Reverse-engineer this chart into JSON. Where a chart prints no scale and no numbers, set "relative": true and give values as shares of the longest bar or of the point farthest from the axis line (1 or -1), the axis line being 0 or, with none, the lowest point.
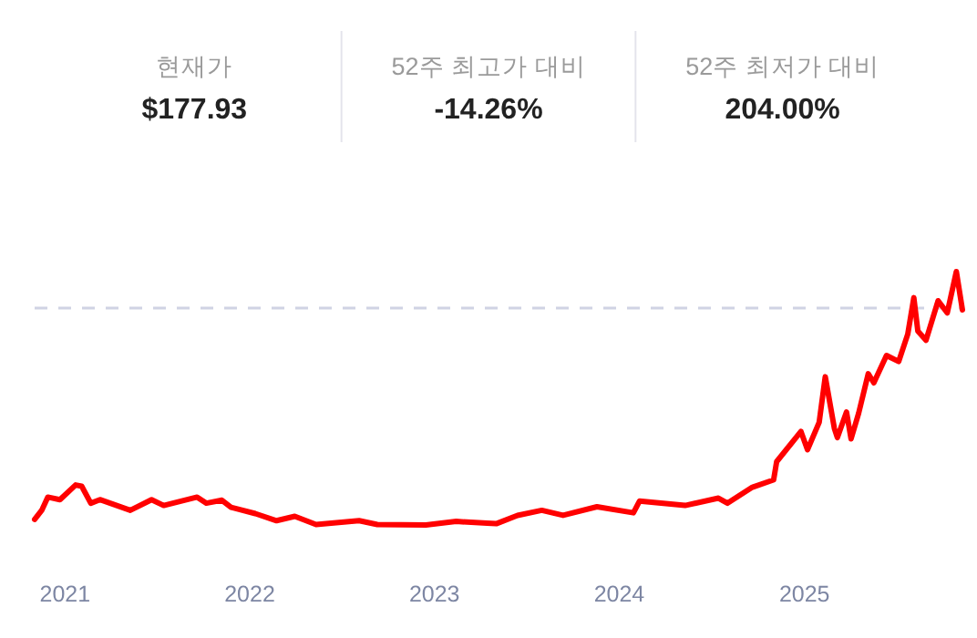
{
  "chart_data": [
    {
      "type": "other",
      "annotations": [
        "현재가",
        "$177.93",
        "52주 최고가 대비",
        "-14.26%",
        "52주 최저가 대비",
        "204.00%"
      ]
    },
    {
      "type": "line",
      "relative": true,
      "xlim": [
        "2020-11-02",
        "2025-11-09"
      ],
      "xticks": [
        {
          "value": "2021-01-01",
          "label": "2021"
        },
        {
          "value": "2022-01-01",
          "label": "2022"
        },
        {
          "value": "2023-01-01",
          "label": "2023"
        },
        {
          "value": "2024-01-01",
          "label": "2024"
        },
        {
          "value": "2025-01-01",
          "label": "2025"
        }
      ],
      "grid": false,
      "ref_lines": [
        {
          "axis": "y",
          "value": 0.856,
          "color": "#d0d3e4",
          "line_style": "dashed"
        }
      ],
      "x": [
        "2020-11-02",
        "2020-11-16",
        "2020-11-28",
        "2020-12-22",
        "2021-01-22",
        "2021-02-03",
        "2021-02-21",
        "2021-03-11",
        "2021-05-10",
        "2021-06-21",
        "2021-07-15",
        "2021-09-19",
        "2021-10-07",
        "2021-11-07",
        "2021-11-25",
        "2022-01-12",
        "2022-02-23",
        "2022-03-31",
        "2022-05-12",
        "2022-08-05",
        "2022-09-10",
        "2022-12-15",
        "2023-02-13",
        "2023-04-15",
        "2023-05-03",
        "2023-06-14",
        "2023-08-01",
        "2023-09-12",
        "2023-11-18",
        "2024-01-29",
        "2024-02-10",
        "2024-05-10",
        "2024-07-15",
        "2024-08-02",
        "2024-09-20",
        "2024-11-01",
        "2024-11-07",
        "2024-12-25",
        "2025-01-07",
        "2025-01-30",
        "2025-02-11",
        "2025-03-01",
        "2025-03-07",
        "2025-03-25",
        "2025-04-03",
        "2025-04-18",
        "2025-05-07",
        "2025-05-18",
        "2025-06-12",
        "2025-07-06",
        "2025-07-24",
        "2025-08-05",
        "2025-08-13",
        "2025-08-29",
        "2025-09-22",
        "2025-10-10",
        "2025-10-28",
        "2025-11-09"
      ],
      "series": [
        {
          "color": "#ff0000",
          "values": [
            0.022,
            0.058,
            0.11,
            0.1,
            0.158,
            0.153,
            0.086,
            0.1,
            0.058,
            0.1,
            0.077,
            0.11,
            0.086,
            0.098,
            0.07,
            0.045,
            0.017,
            0.034,
            0.002,
            0.017,
            0.002,
            0,
            0.014,
            0.007,
            0.005,
            0.038,
            0.058,
            0.038,
            0.072,
            0.048,
            0.094,
            0.077,
            0.106,
            0.086,
            0.149,
            0.178,
            0.25,
            0.369,
            0.297,
            0.405,
            0.585,
            0.381,
            0.345,
            0.446,
            0.34,
            0.441,
            0.597,
            0.561,
            0.669,
            0.645,
            0.753,
            0.897,
            0.765,
            0.729,
            0.885,
            0.837,
            1.0,
            0.849
          ]
        }
      ]
    }
  ]
}
